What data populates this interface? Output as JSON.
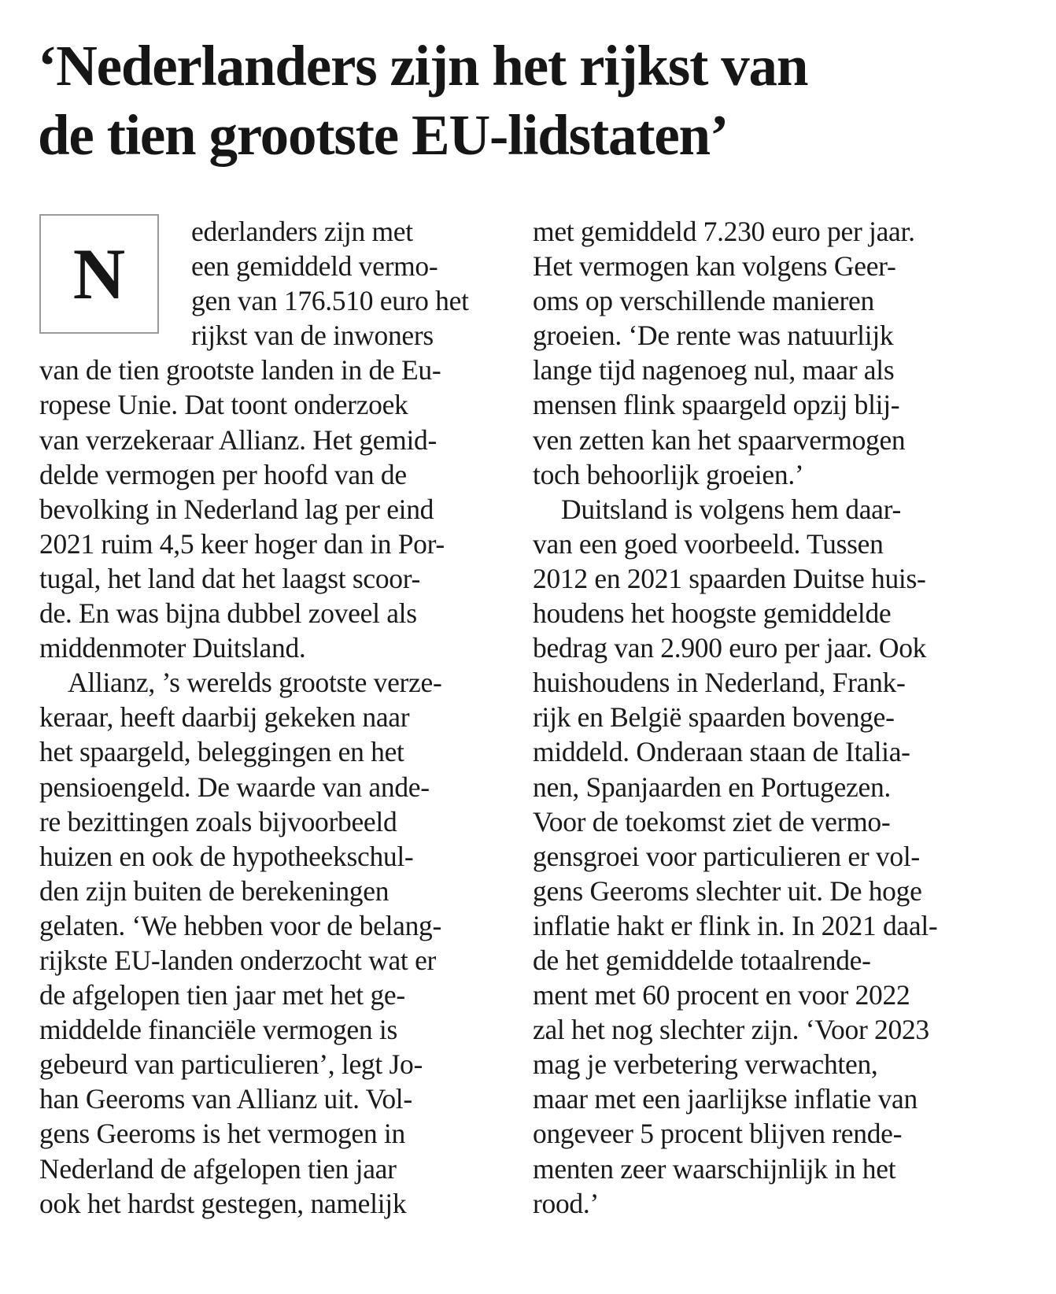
{
  "article": {
    "headline": [
      "‘Nederlanders zijn het rijkst van",
      "de tien grootste EU-lidstaten’"
    ],
    "drop_cap": "N",
    "left_column": [
      "ederlanders zijn met",
      "een gemiddeld vermo-",
      "gen van 176.510 euro het",
      "rijkst van de inwoners",
      "van de tien grootste landen in de Eu-",
      "ropese Unie. Dat toont onderzoek",
      "van verzekeraar Allianz. Het gemid-",
      "delde vermogen per hoofd van de",
      "bevolking in Nederland lag per eind",
      "2021 ruim 4,5 keer hoger dan in Por-",
      "tugal, het land dat het laagst scoor-",
      "de. En was bijna dubbel zoveel als",
      "middenmoter Duitsland.",
      "Allianz, ’s werelds grootste verze-",
      "keraar, heeft daarbij gekeken naar",
      "het spaargeld, beleggingen en het",
      "pensioengeld. De waarde van ande-",
      "re bezittingen zoals bijvoorbeeld",
      "huizen en ook de hypotheekschul-",
      "den zijn buiten de berekeningen",
      "gelaten. ‘We hebben voor de belang-",
      "rijkste EU-landen onderzocht wat er",
      "de afgelopen tien jaar met het ge-",
      "middelde financiële vermogen is",
      "gebeurd van particulieren’, legt Jo-",
      "han Geeroms van Allianz uit. Vol-",
      "gens Geeroms is het vermogen in",
      "Nederland de afgelopen tien jaar",
      "ook het hardst gestegen, namelijk"
    ],
    "right_column": [
      "met gemiddeld 7.230 euro per jaar.",
      "Het vermogen kan volgens Geer-",
      "oms op verschillende manieren",
      "groeien. ‘De rente was natuurlijk",
      "lange tijd nagenoeg nul, maar als",
      "mensen flink spaargeld opzij blij-",
      "ven zetten kan het spaarvermogen",
      "toch behoorlijk groeien.’",
      "Duitsland is volgens hem daar-",
      "van een goed voorbeeld. Tussen",
      "2012 en 2021 spaarden Duitse huis-",
      "houdens het hoogste gemiddelde",
      "bedrag van 2.900 euro per jaar. Ook",
      "huishoudens in Nederland, Frank-",
      "rijk en België spaarden bovenge-",
      "middeld. Onderaan staan de Italia-",
      "nen, Spanjaarden en Portugezen.",
      "Voor de toekomst ziet de vermo-",
      "gensgroei voor particulieren er vol-",
      "gens Geeroms slechter uit. De hoge",
      "inflatie hakt er flink in. In 2021 daal-",
      "de het gemiddelde totaalrende-",
      "ment met 60 procent en voor 2022",
      "zal het nog slechter zijn. ‘Voor 2023",
      "mag je verbetering verwachten,",
      "maar met een jaarlijkse inflatie van",
      "ongeveer 5 procent blijven rende-",
      "menten zeer waarschijnlijk in het",
      "rood.’"
    ]
  }
}
